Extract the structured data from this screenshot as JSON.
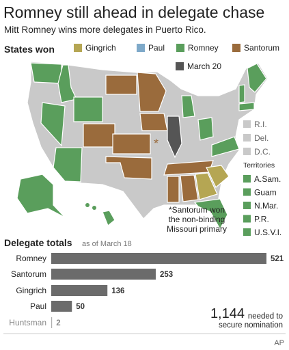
{
  "title": "Romney still ahead in delegate chase",
  "subtitle": "Mitt Romney wins more delegates in Puerto Rico.",
  "map": {
    "heading": "States won",
    "legend": [
      {
        "label": "Gingrich",
        "color": "#b5a653"
      },
      {
        "label": "Paul",
        "color": "#7ea9c9"
      },
      {
        "label": "Romney",
        "color": "#5a9e5c"
      },
      {
        "label": "Santorum",
        "color": "#9a6b3c"
      },
      {
        "label": "March 20",
        "color": "#555555"
      }
    ],
    "small_states": [
      "R.I.",
      "Del.",
      "D.C."
    ],
    "territories_heading": "Territories",
    "territories": [
      "A.Sam.",
      "Guam",
      "N.Mar.",
      "P.R.",
      "U.S.V.I."
    ],
    "marker": "*",
    "note": [
      "*Santorum won",
      "the non-binding",
      "Missouri primary"
    ]
  },
  "chart_data": {
    "type": "bar",
    "orientation": "horizontal",
    "title": "Delegate totals",
    "subtitle": "as of March 18",
    "categories": [
      "Romney",
      "Santorum",
      "Gingrich",
      "Paul",
      "Huntsman"
    ],
    "values": [
      521,
      253,
      136,
      50,
      2
    ],
    "colors": [
      "#6b6b6b",
      "#6b6b6b",
      "#6b6b6b",
      "#6b6b6b",
      "#b0b0b0"
    ],
    "annotation": {
      "number": "1,144",
      "text": [
        "needed to",
        "secure nomination"
      ]
    }
  },
  "credit": "AP"
}
